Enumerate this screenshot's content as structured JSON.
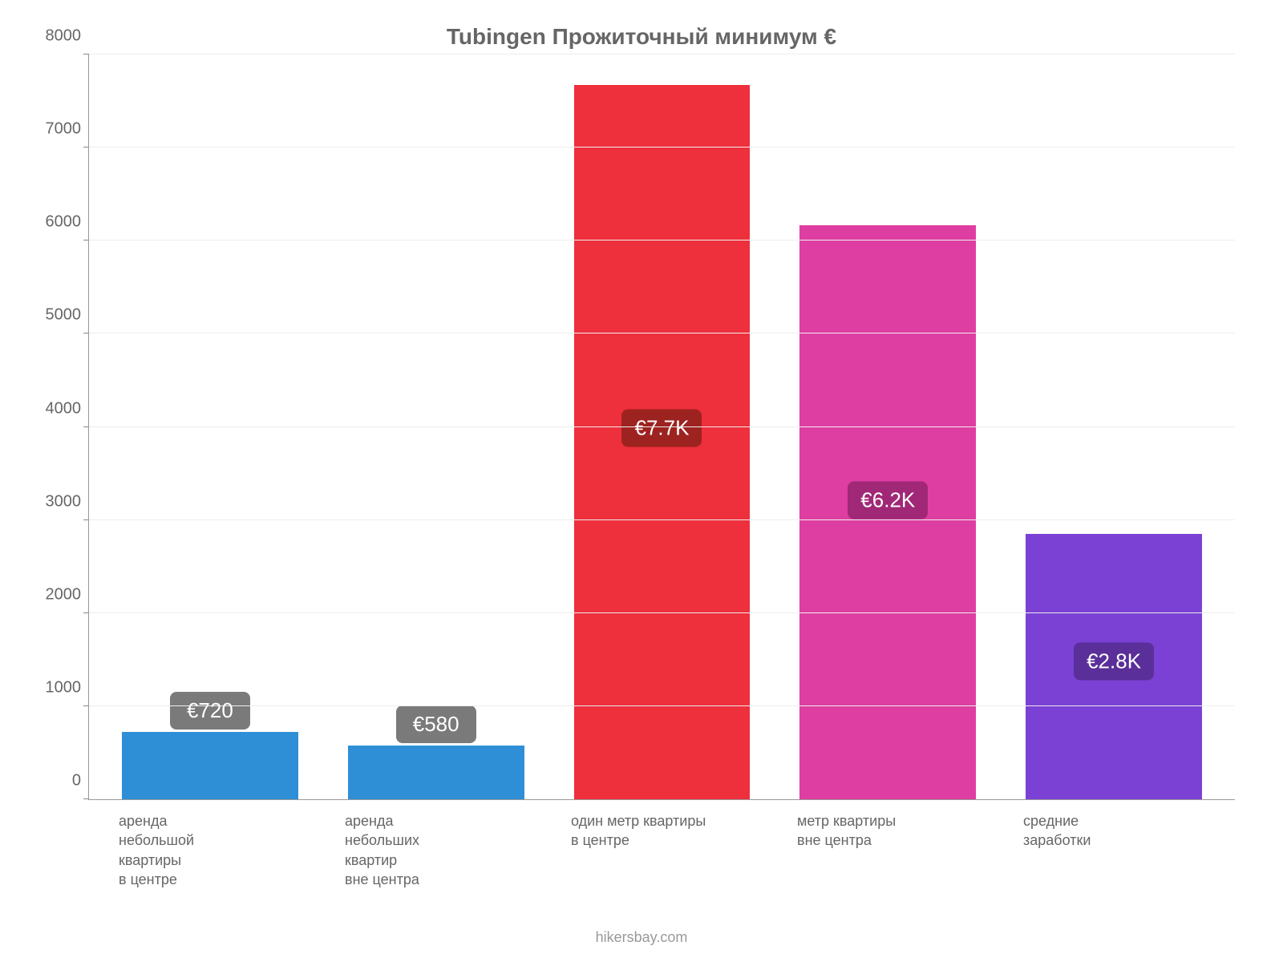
{
  "chart": {
    "type": "bar",
    "title": "Tubingen Прожиточный минимум €",
    "title_fontsize": 28,
    "title_color": "#666666",
    "footer": "hikersbay.com",
    "footer_color": "#999999",
    "background_color": "#ffffff",
    "axis_color": "#999999",
    "grid_color": "#eeeeee",
    "tick_label_color": "#666666",
    "tick_label_fontsize": 20,
    "x_label_fontsize": 18,
    "ylim": [
      0,
      8000
    ],
    "ytick_step": 1000,
    "yticks": [
      0,
      1000,
      2000,
      3000,
      4000,
      5000,
      6000,
      7000,
      8000
    ],
    "bar_width_pct": 78,
    "categories": [
      "аренда\nнебольшой\nквартиры\nв центре",
      "аренда\nнебольших\nквартир\nвне центра",
      "один метр квартиры\nв центре",
      "метр квартиры\nвне центра",
      "средние\nзаработки"
    ],
    "values": [
      720,
      580,
      7670,
      6170,
      2850
    ],
    "value_labels": [
      "€720",
      "€580",
      "€7.7K",
      "€6.2K",
      "€2.8K"
    ],
    "bar_colors": [
      "#2f8fd6",
      "#2f8fd6",
      "#ee2f3c",
      "#de3ea1",
      "#7b40d4"
    ],
    "badge_colors": [
      "#7a7a7a",
      "#7a7a7a",
      "#9d2320",
      "#a02876",
      "#5a2f99"
    ],
    "badge_text_color": "#ffffff",
    "badge_fontsize": 26,
    "badge_offset_norm": {
      "low": -50,
      "high": 0.48
    }
  }
}
